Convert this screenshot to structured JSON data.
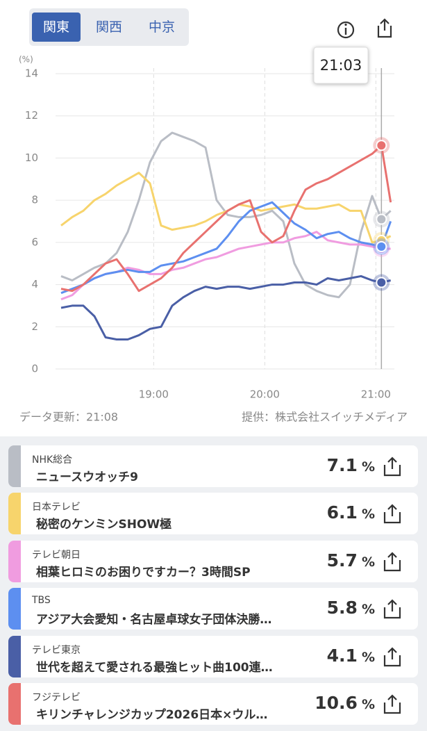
{
  "tabs": [
    "関東",
    "関西",
    "中京"
  ],
  "chart_data": {
    "type": "line",
    "y_unit": "(%)",
    "x": [
      1090,
      1096,
      1102,
      1108,
      1114,
      1120,
      1126,
      1132,
      1138,
      1144,
      1150,
      1156,
      1162,
      1168,
      1174,
      1180,
      1186,
      1192,
      1198,
      1204,
      1210,
      1216,
      1222,
      1228,
      1234,
      1240,
      1246,
      1252,
      1258,
      1263,
      1268
    ],
    "xlim": [
      1087,
      1270
    ],
    "xticks": [
      {
        "value": 1140,
        "label": "19:00"
      },
      {
        "value": 1200,
        "label": "20:00"
      },
      {
        "value": 1260,
        "label": "21:00"
      }
    ],
    "ylim": [
      0,
      14
    ],
    "yticks": [
      0,
      2,
      4,
      6,
      8,
      10,
      12,
      14
    ],
    "grid": true,
    "cursor": {
      "value": 1263,
      "label": "21:03"
    },
    "series": [
      {
        "name": "NHK総合",
        "color": "#b9bdc5",
        "values": [
          4.4,
          4.2,
          4.5,
          4.8,
          5,
          5.5,
          6.5,
          8,
          9.8,
          10.8,
          11.2,
          11,
          10.8,
          10.5,
          8,
          7.3,
          7.2,
          7.2,
          7.3,
          7.5,
          7,
          5,
          4,
          3.7,
          3.5,
          3.4,
          4,
          6.5,
          8.2,
          7.1,
          7.5
        ]
      },
      {
        "name": "日本テレビ",
        "color": "#f7d46c",
        "values": [
          6.8,
          7.2,
          7.5,
          8,
          8.3,
          8.7,
          9,
          9.3,
          8.8,
          6.8,
          6.6,
          6.7,
          6.8,
          7,
          7.3,
          7.5,
          7.8,
          7.7,
          7.5,
          7.6,
          7.7,
          7.8,
          7.6,
          7.6,
          7.7,
          7.8,
          7.5,
          7.5,
          6,
          6.1,
          6.3
        ]
      },
      {
        "name": "テレビ朝日",
        "color": "#f09ce0",
        "values": [
          3.3,
          3.5,
          4,
          4.3,
          4.5,
          4.6,
          4.8,
          4.7,
          4.5,
          4.5,
          4.7,
          4.8,
          5,
          5.2,
          5.3,
          5.5,
          5.7,
          5.8,
          5.9,
          6,
          6,
          6.2,
          6.3,
          6.5,
          6.1,
          6,
          5.9,
          5.9,
          5.8,
          5.7,
          5.7
        ]
      },
      {
        "name": "TBS",
        "color": "#5d8ff0",
        "values": [
          3.6,
          3.8,
          4,
          4.3,
          4.5,
          4.6,
          4.7,
          4.6,
          4.6,
          4.9,
          5,
          5.1,
          5.3,
          5.5,
          5.7,
          6.3,
          7,
          7.5,
          7.7,
          7.9,
          7.4,
          6.9,
          6.6,
          6.2,
          6.4,
          6.5,
          6.2,
          6,
          5.9,
          5.8,
          7
        ]
      },
      {
        "name": "テレビ東京",
        "color": "#4a5fa6",
        "values": [
          2.9,
          3,
          3,
          2.5,
          1.5,
          1.4,
          1.4,
          1.6,
          1.9,
          2,
          3,
          3.4,
          3.7,
          3.9,
          3.8,
          3.9,
          3.9,
          3.8,
          3.9,
          4,
          4,
          4.1,
          4.1,
          4,
          4.3,
          4.2,
          4.3,
          4.4,
          4.2,
          4.1,
          4.2
        ]
      },
      {
        "name": "フジテレビ",
        "color": "#e8716f",
        "values": [
          3.8,
          3.7,
          4,
          4.5,
          5,
          5.2,
          4.5,
          3.7,
          4,
          4.3,
          4.8,
          5.5,
          6,
          6.5,
          7,
          7.5,
          7.8,
          8,
          6.5,
          6,
          6.3,
          7.5,
          8.5,
          8.8,
          9,
          9.3,
          9.6,
          9.9,
          10.2,
          10.6,
          7.9
        ]
      }
    ]
  },
  "updated": "データ更新：21:08",
  "provider": "提供：株式会社スイッチメディア",
  "unit": "%",
  "programs": [
    {
      "title": "ニュースウオッチ9",
      "rating": "7.1"
    },
    {
      "title": "秘密のケンミンSHOW極",
      "rating": "6.1"
    },
    {
      "title": "相葉ヒロミのお困りですカー？3時間SP",
      "rating": "5.7"
    },
    {
      "title": "アジア大会愛知・名古屋卓球女子団体決勝…",
      "rating": "5.8"
    },
    {
      "title": "世代を超えて愛される最強ヒット曲100連…",
      "rating": "4.1"
    },
    {
      "title": "キリンチャレンジカップ2026日本×ウル…",
      "rating": "10.6"
    }
  ]
}
